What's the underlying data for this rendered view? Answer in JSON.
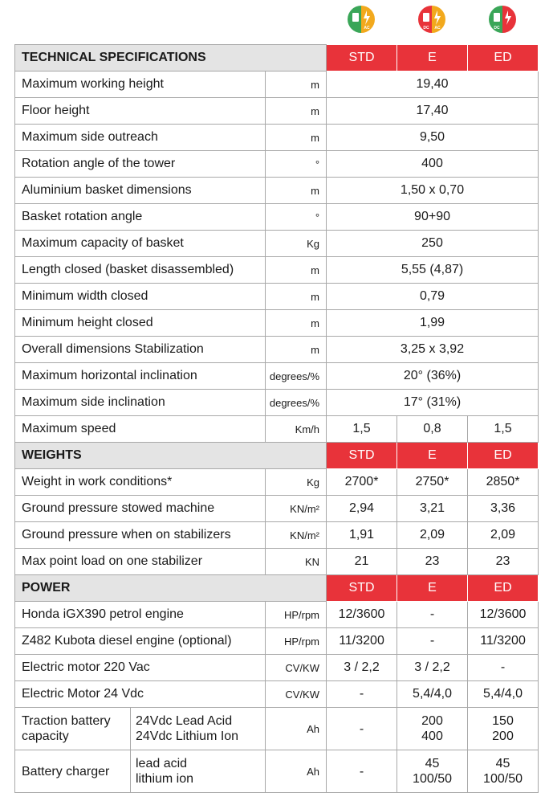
{
  "icons": [
    {
      "labels": [
        "AC"
      ]
    },
    {
      "labels": [
        "DC",
        "AC"
      ]
    },
    {
      "labels": [
        "DC"
      ]
    }
  ],
  "sections": [
    {
      "title": "TECHNICAL SPECIFICATIONS",
      "columns": [
        "STD",
        "E",
        "ED"
      ],
      "rows": [
        {
          "label": "Maximum working height",
          "unit": "m",
          "value": "19,40"
        },
        {
          "label": "Floor height",
          "unit": "m",
          "value": "17,40"
        },
        {
          "label": "Maximum side outreach",
          "unit": "m",
          "value": "9,50"
        },
        {
          "label": "Rotation angle of the tower",
          "unit": "°",
          "value": "400"
        },
        {
          "label": "Aluminium basket dimensions",
          "unit": "m",
          "value": "1,50 x 0,70"
        },
        {
          "label": "Basket rotation angle",
          "unit": "°",
          "value": "90+90"
        },
        {
          "label": "Maximum capacity of basket",
          "unit": "Kg",
          "value": "250"
        },
        {
          "label": "Length closed (basket disassembled)",
          "unit": "m",
          "value": "5,55 (4,87)"
        },
        {
          "label": "Minimum width closed",
          "unit": "m",
          "value": "0,79"
        },
        {
          "label": "Minimum height closed",
          "unit": "m",
          "value": "1,99"
        },
        {
          "label": "Overall dimensions  Stabilization",
          "unit": "m",
          "value": "3,25 x 3,92"
        },
        {
          "label": "Maximum horizontal inclination",
          "unit": "degrees/%",
          "value": "20° (36%)"
        },
        {
          "label": "Maximum side inclination",
          "unit": "degrees/%",
          "value": "17° (31%)"
        },
        {
          "label": "Maximum speed",
          "unit": "Km/h",
          "values": [
            "1,5",
            "0,8",
            "1,5"
          ]
        }
      ]
    },
    {
      "title": "WEIGHTS",
      "columns": [
        "STD",
        "E",
        "ED"
      ],
      "rows": [
        {
          "label": "Weight in work conditions*",
          "unit": "Kg",
          "values": [
            "2700*",
            "2750*",
            "2850*"
          ]
        },
        {
          "label": "Ground pressure stowed machine",
          "unit": "KN/m²",
          "values": [
            "2,94",
            "3,21",
            "3,36"
          ]
        },
        {
          "label": "Ground pressure when on stabilizers",
          "unit": "KN/m²",
          "values": [
            "1,91",
            "2,09",
            "2,09"
          ]
        },
        {
          "label": "Max point load on one stabilizer",
          "unit": "KN",
          "values": [
            "21",
            "23",
            "23"
          ]
        }
      ]
    },
    {
      "title": "POWER",
      "columns": [
        "STD",
        "E",
        "ED"
      ],
      "rows": [
        {
          "label": "Honda iGX390 petrol engine",
          "unit": "HP/rpm",
          "values": [
            "12/3600",
            "-",
            "12/3600"
          ]
        },
        {
          "label": "Z482 Kubota diesel engine (optional)",
          "unit": "HP/rpm",
          "values": [
            "11/3200",
            "-",
            "11/3200"
          ]
        },
        {
          "label": "Electric motor  220 Vac",
          "unit": "CV/KW",
          "values": [
            "3 / 2,2",
            "3 / 2,2",
            "-"
          ]
        },
        {
          "label": "Electric Motor  24 Vdc",
          "unit": "CV/KW",
          "values": [
            "-",
            "5,4/4,0",
            "5,4/4,0"
          ]
        },
        {
          "label": "Traction battery capacity",
          "sub": [
            "24Vdc Lead Acid",
            "24Vdc Lithium Ion"
          ],
          "unit": "Ah",
          "values": [
            "-",
            [
              "200",
              "400"
            ],
            [
              "150",
              "200"
            ]
          ]
        },
        {
          "label": "Battery charger",
          "sub": [
            "lead acid",
            "lithium ion"
          ],
          "unit": "Ah",
          "values": [
            "-",
            [
              "45",
              "100/50"
            ],
            [
              "45",
              "100/50"
            ]
          ]
        }
      ]
    }
  ]
}
